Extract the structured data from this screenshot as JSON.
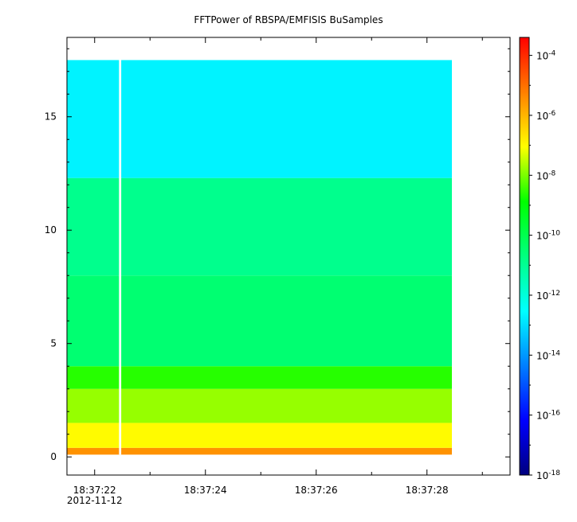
{
  "chart_data": {
    "type": "heatmap",
    "title": "FFTPower of RBSPA/EMFISIS  BuSamples",
    "x_ticks": [
      "18:37:22",
      "18:37:24",
      "18:37:26",
      "18:37:28"
    ],
    "x_tick_seconds": [
      22,
      24,
      26,
      28
    ],
    "x_range_seconds": [
      21.5,
      29.5
    ],
    "date_label": "2012-11-12",
    "y_ticks": [
      "0",
      "5",
      "10",
      "15"
    ],
    "y_tick_values": [
      0,
      5,
      10,
      15
    ],
    "ylim": [
      -0.8,
      18.5
    ],
    "data_y_extent": [
      0.1,
      17.5
    ],
    "data_x_extent_seconds": [
      21.5,
      28.45
    ],
    "gap_seconds": [
      22.44,
      22.48
    ],
    "colorbar": {
      "scale": "log",
      "range_exponents": [
        -18,
        -3.4
      ],
      "tick_exponents": [
        -18,
        -16,
        -14,
        -12,
        -10,
        -8,
        -6,
        -4
      ],
      "tick_base": "10",
      "tick_exps": [
        "-18",
        "-16",
        "-14",
        "-12",
        "-10",
        "-8",
        "-6",
        "-4"
      ]
    },
    "power_bands": [
      {
        "y_from": 0.1,
        "y_to": 0.4,
        "log_power": -5.5
      },
      {
        "y_from": 0.4,
        "y_to": 1.5,
        "log_power": -7.0
      },
      {
        "y_from": 1.5,
        "y_to": 3.0,
        "log_power": -7.8
      },
      {
        "y_from": 3.0,
        "y_to": 4.0,
        "log_power": -8.6
      },
      {
        "y_from": 4.0,
        "y_to": 8.0,
        "log_power": -10.5
      },
      {
        "y_from": 8.0,
        "y_to": 12.3,
        "log_power": -10.9
      },
      {
        "y_from": 12.3,
        "y_to": 17.5,
        "log_power": -12.7
      }
    ]
  }
}
